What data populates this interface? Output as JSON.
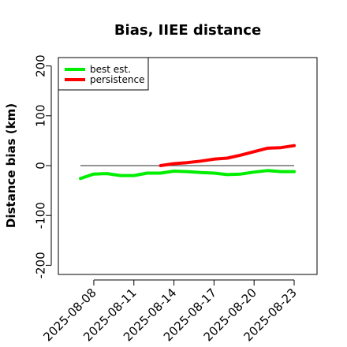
{
  "chart_data": {
    "type": "line",
    "title": "Bias, IIEE distance",
    "xlabel": "",
    "ylabel": "Distance bias (km)",
    "ylim": [
      -215,
      215
    ],
    "y_ticks": [
      -200,
      -100,
      0,
      100,
      200
    ],
    "x_ticks": [
      "2025-08-08",
      "2025-08-11",
      "2025-08-14",
      "2025-08-17",
      "2025-08-20",
      "2025-08-23"
    ],
    "x_range": [
      "2025-08-07",
      "2025-08-23"
    ],
    "grid": false,
    "legend_position": "top-left",
    "reference_line": {
      "y": 0,
      "color": "#555555"
    },
    "series": [
      {
        "name": "best est.",
        "color": "#00ee00",
        "points": [
          [
            "2025-08-07",
            -26
          ],
          [
            "2025-08-08",
            -17
          ],
          [
            "2025-08-09",
            -16
          ],
          [
            "2025-08-10",
            -20
          ],
          [
            "2025-08-11",
            -20
          ],
          [
            "2025-08-12",
            -15
          ],
          [
            "2025-08-13",
            -15
          ],
          [
            "2025-08-14",
            -11
          ],
          [
            "2025-08-15",
            -12
          ],
          [
            "2025-08-16",
            -14
          ],
          [
            "2025-08-17",
            -15
          ],
          [
            "2025-08-18",
            -18
          ],
          [
            "2025-08-19",
            -17
          ],
          [
            "2025-08-20",
            -13
          ],
          [
            "2025-08-21",
            -10
          ],
          [
            "2025-08-22",
            -12
          ],
          [
            "2025-08-23",
            -12
          ]
        ]
      },
      {
        "name": "persistence",
        "color": "#ff0000",
        "points": [
          [
            "2025-08-13",
            0
          ],
          [
            "2025-08-14",
            4
          ],
          [
            "2025-08-15",
            6
          ],
          [
            "2025-08-16",
            9
          ],
          [
            "2025-08-17",
            13
          ],
          [
            "2025-08-18",
            15
          ],
          [
            "2025-08-19",
            21
          ],
          [
            "2025-08-20",
            28
          ],
          [
            "2025-08-21",
            35
          ],
          [
            "2025-08-22",
            36
          ],
          [
            "2025-08-23",
            40
          ]
        ]
      }
    ]
  }
}
